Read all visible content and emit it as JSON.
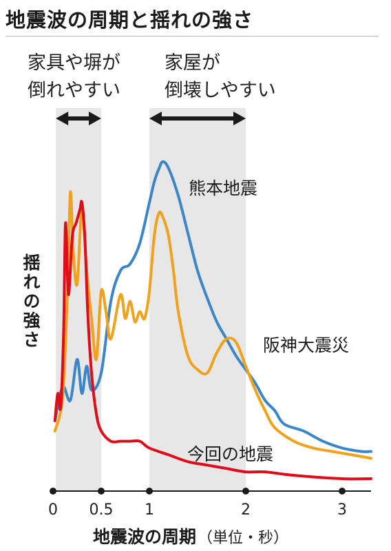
{
  "title": "地震波の周期と揺れの強さ",
  "chart_data": {
    "type": "line",
    "title": "地震波の周期と揺れの強さ",
    "xlabel": "地震波の周期",
    "xlabel_unit": "（単位・秒）",
    "ylabel": "揺れの強さ",
    "x_ticks": [
      {
        "value": 0,
        "label": "0"
      },
      {
        "value": 0.5,
        "label": "0.5"
      },
      {
        "value": 1,
        "label": "1"
      },
      {
        "value": 2,
        "label": "2"
      },
      {
        "value": 3,
        "label": "3"
      }
    ],
    "xlim": [
      0,
      3.3
    ],
    "ylim": [
      0,
      100
    ],
    "y_tick_labels": false,
    "grid": false,
    "bands": [
      {
        "from": 0.03,
        "to": 0.5,
        "label": "家具や塀が\n倒れやすい"
      },
      {
        "from": 1.0,
        "to": 2.0,
        "label": "家屋が\n倒壊しやすい"
      }
    ],
    "series": [
      {
        "name": "熊本地震",
        "color": "#3a86c8",
        "x": [
          0.02,
          0.1,
          0.18,
          0.25,
          0.3,
          0.35,
          0.4,
          0.5,
          0.6,
          0.7,
          0.8,
          0.9,
          1.0,
          1.05,
          1.1,
          1.14,
          1.2,
          1.3,
          1.4,
          1.5,
          1.6,
          1.7,
          1.8,
          1.9,
          2.0,
          2.1,
          2.2,
          2.3,
          2.4,
          2.6,
          2.8,
          3.0,
          3.2,
          3.3
        ],
        "y": [
          18,
          28,
          24,
          36,
          26,
          34,
          27,
          32,
          53,
          62,
          64,
          70,
          82,
          88,
          92,
          94,
          92,
          84,
          73,
          62,
          54,
          47,
          42,
          37,
          33,
          29,
          24,
          21,
          17,
          15,
          12,
          10,
          9,
          9
        ]
      },
      {
        "name": "阪神大震災",
        "color": "#f0a21c",
        "x": [
          0.02,
          0.1,
          0.15,
          0.18,
          0.21,
          0.25,
          0.3,
          0.35,
          0.4,
          0.45,
          0.5,
          0.55,
          0.6,
          0.7,
          0.75,
          0.8,
          0.85,
          0.9,
          0.95,
          1.0,
          1.05,
          1.1,
          1.15,
          1.2,
          1.25,
          1.3,
          1.4,
          1.5,
          1.6,
          1.7,
          1.8,
          1.9,
          2.0,
          2.1,
          2.2,
          2.3,
          2.5,
          2.7,
          2.9,
          3.1,
          3.3
        ],
        "y": [
          15,
          25,
          55,
          85,
          68,
          58,
          80,
          62,
          48,
          36,
          56,
          50,
          42,
          55,
          48,
          53,
          47,
          50,
          48,
          56,
          72,
          79,
          77,
          72,
          62,
          50,
          37,
          33,
          32,
          38,
          42,
          41,
          34,
          27,
          21,
          16,
          12,
          10,
          9,
          8,
          7
        ]
      },
      {
        "name": "今回の地震",
        "color": "#e00c1a",
        "x": [
          0.02,
          0.05,
          0.08,
          0.11,
          0.13,
          0.16,
          0.2,
          0.24,
          0.28,
          0.3,
          0.33,
          0.36,
          0.4,
          0.45,
          0.5,
          0.6,
          0.7,
          0.8,
          0.9,
          1.0,
          1.2,
          1.4,
          1.6,
          1.8,
          2.0,
          2.2,
          2.5,
          3.0,
          3.3
        ],
        "y": [
          18,
          26,
          22,
          44,
          76,
          55,
          72,
          76,
          80,
          82,
          72,
          50,
          32,
          20,
          15,
          12,
          12,
          12,
          12,
          10,
          8,
          6,
          5,
          4,
          3,
          3,
          2,
          1,
          1
        ]
      }
    ]
  }
}
